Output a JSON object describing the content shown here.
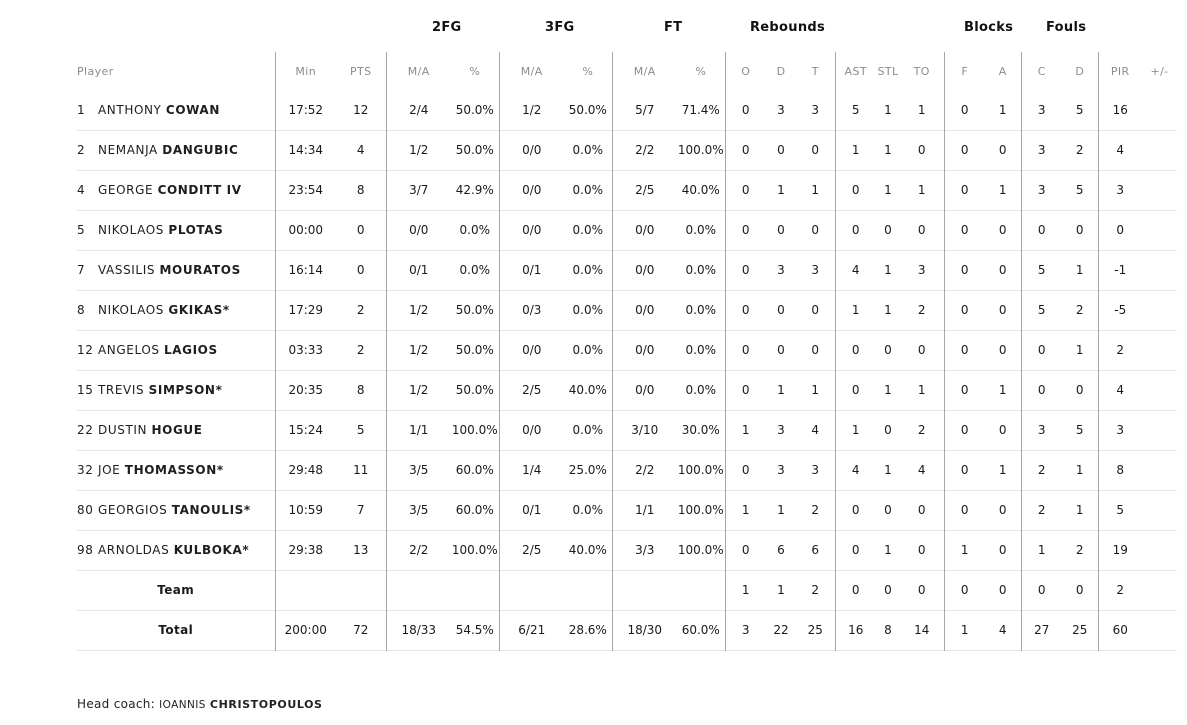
{
  "group_headers": {
    "fg2": "2FG",
    "fg3": "3FG",
    "ft": "FT",
    "rebounds": "Rebounds",
    "blocks": "Blocks",
    "fouls": "Fouls"
  },
  "columns": {
    "player": "Player",
    "min": "Min",
    "pts": "PTS",
    "fg2_ma": "M/A",
    "fg2_pct": "%",
    "fg3_ma": "M/A",
    "fg3_pct": "%",
    "ft_ma": "M/A",
    "ft_pct": "%",
    "reb_o": "O",
    "reb_d": "D",
    "reb_t": "T",
    "ast": "AST",
    "stl": "STL",
    "to": "TO",
    "blk_f": "F",
    "blk_a": "A",
    "foul_c": "C",
    "foul_d": "D",
    "pir": "PIR",
    "pm": "+/-"
  },
  "players": [
    {
      "num": "1",
      "first": "ANTHONY",
      "last": "COWAN",
      "min": "17:52",
      "pts": "12",
      "fg2_ma": "2/4",
      "fg2_pct": "50.0%",
      "fg3_ma": "1/2",
      "fg3_pct": "50.0%",
      "ft_ma": "5/7",
      "ft_pct": "71.4%",
      "reb_o": "0",
      "reb_d": "3",
      "reb_t": "3",
      "ast": "5",
      "stl": "1",
      "to": "1",
      "blk_f": "0",
      "blk_a": "1",
      "foul_c": "3",
      "foul_d": "5",
      "pir": "16",
      "pm": ""
    },
    {
      "num": "2",
      "first": "NEMANJA",
      "last": "DANGUBIC",
      "min": "14:34",
      "pts": "4",
      "fg2_ma": "1/2",
      "fg2_pct": "50.0%",
      "fg3_ma": "0/0",
      "fg3_pct": "0.0%",
      "ft_ma": "2/2",
      "ft_pct": "100.0%",
      "reb_o": "0",
      "reb_d": "0",
      "reb_t": "0",
      "ast": "1",
      "stl": "1",
      "to": "0",
      "blk_f": "0",
      "blk_a": "0",
      "foul_c": "3",
      "foul_d": "2",
      "pir": "4",
      "pm": ""
    },
    {
      "num": "4",
      "first": "GEORGE",
      "last": "CONDITT IV",
      "min": "23:54",
      "pts": "8",
      "fg2_ma": "3/7",
      "fg2_pct": "42.9%",
      "fg3_ma": "0/0",
      "fg3_pct": "0.0%",
      "ft_ma": "2/5",
      "ft_pct": "40.0%",
      "reb_o": "0",
      "reb_d": "1",
      "reb_t": "1",
      "ast": "0",
      "stl": "1",
      "to": "1",
      "blk_f": "0",
      "blk_a": "1",
      "foul_c": "3",
      "foul_d": "5",
      "pir": "3",
      "pm": ""
    },
    {
      "num": "5",
      "first": "NIKOLAOS",
      "last": "PLOTAS",
      "min": "00:00",
      "pts": "0",
      "fg2_ma": "0/0",
      "fg2_pct": "0.0%",
      "fg3_ma": "0/0",
      "fg3_pct": "0.0%",
      "ft_ma": "0/0",
      "ft_pct": "0.0%",
      "reb_o": "0",
      "reb_d": "0",
      "reb_t": "0",
      "ast": "0",
      "stl": "0",
      "to": "0",
      "blk_f": "0",
      "blk_a": "0",
      "foul_c": "0",
      "foul_d": "0",
      "pir": "0",
      "pm": ""
    },
    {
      "num": "7",
      "first": "VASSILIS",
      "last": "MOURATOS",
      "min": "16:14",
      "pts": "0",
      "fg2_ma": "0/1",
      "fg2_pct": "0.0%",
      "fg3_ma": "0/1",
      "fg3_pct": "0.0%",
      "ft_ma": "0/0",
      "ft_pct": "0.0%",
      "reb_o": "0",
      "reb_d": "3",
      "reb_t": "3",
      "ast": "4",
      "stl": "1",
      "to": "3",
      "blk_f": "0",
      "blk_a": "0",
      "foul_c": "5",
      "foul_d": "1",
      "pir": "-1",
      "pm": ""
    },
    {
      "num": "8",
      "first": "NIKOLAOS",
      "last": "GKIKAS*",
      "min": "17:29",
      "pts": "2",
      "fg2_ma": "1/2",
      "fg2_pct": "50.0%",
      "fg3_ma": "0/3",
      "fg3_pct": "0.0%",
      "ft_ma": "0/0",
      "ft_pct": "0.0%",
      "reb_o": "0",
      "reb_d": "0",
      "reb_t": "0",
      "ast": "1",
      "stl": "1",
      "to": "2",
      "blk_f": "0",
      "blk_a": "0",
      "foul_c": "5",
      "foul_d": "2",
      "pir": "-5",
      "pm": ""
    },
    {
      "num": "12",
      "first": "ANGELOS",
      "last": "LAGIOS",
      "min": "03:33",
      "pts": "2",
      "fg2_ma": "1/2",
      "fg2_pct": "50.0%",
      "fg3_ma": "0/0",
      "fg3_pct": "0.0%",
      "ft_ma": "0/0",
      "ft_pct": "0.0%",
      "reb_o": "0",
      "reb_d": "0",
      "reb_t": "0",
      "ast": "0",
      "stl": "0",
      "to": "0",
      "blk_f": "0",
      "blk_a": "0",
      "foul_c": "0",
      "foul_d": "1",
      "pir": "2",
      "pm": ""
    },
    {
      "num": "15",
      "first": "TREVIS",
      "last": "SIMPSON*",
      "min": "20:35",
      "pts": "8",
      "fg2_ma": "1/2",
      "fg2_pct": "50.0%",
      "fg3_ma": "2/5",
      "fg3_pct": "40.0%",
      "ft_ma": "0/0",
      "ft_pct": "0.0%",
      "reb_o": "0",
      "reb_d": "1",
      "reb_t": "1",
      "ast": "0",
      "stl": "1",
      "to": "1",
      "blk_f": "0",
      "blk_a": "1",
      "foul_c": "0",
      "foul_d": "0",
      "pir": "4",
      "pm": ""
    },
    {
      "num": "22",
      "first": "DUSTIN",
      "last": "HOGUE",
      "min": "15:24",
      "pts": "5",
      "fg2_ma": "1/1",
      "fg2_pct": "100.0%",
      "fg3_ma": "0/0",
      "fg3_pct": "0.0%",
      "ft_ma": "3/10",
      "ft_pct": "30.0%",
      "reb_o": "1",
      "reb_d": "3",
      "reb_t": "4",
      "ast": "1",
      "stl": "0",
      "to": "2",
      "blk_f": "0",
      "blk_a": "0",
      "foul_c": "3",
      "foul_d": "5",
      "pir": "3",
      "pm": ""
    },
    {
      "num": "32",
      "first": "JOE",
      "last": "THOMASSON*",
      "min": "29:48",
      "pts": "11",
      "fg2_ma": "3/5",
      "fg2_pct": "60.0%",
      "fg3_ma": "1/4",
      "fg3_pct": "25.0%",
      "ft_ma": "2/2",
      "ft_pct": "100.0%",
      "reb_o": "0",
      "reb_d": "3",
      "reb_t": "3",
      "ast": "4",
      "stl": "1",
      "to": "4",
      "blk_f": "0",
      "blk_a": "1",
      "foul_c": "2",
      "foul_d": "1",
      "pir": "8",
      "pm": ""
    },
    {
      "num": "80",
      "first": "GEORGIOS",
      "last": "TANOULIS*",
      "min": "10:59",
      "pts": "7",
      "fg2_ma": "3/5",
      "fg2_pct": "60.0%",
      "fg3_ma": "0/1",
      "fg3_pct": "0.0%",
      "ft_ma": "1/1",
      "ft_pct": "100.0%",
      "reb_o": "1",
      "reb_d": "1",
      "reb_t": "2",
      "ast": "0",
      "stl": "0",
      "to": "0",
      "blk_f": "0",
      "blk_a": "0",
      "foul_c": "2",
      "foul_d": "1",
      "pir": "5",
      "pm": ""
    },
    {
      "num": "98",
      "first": "ARNOLDAS",
      "last": "KULBOKA*",
      "min": "29:38",
      "pts": "13",
      "fg2_ma": "2/2",
      "fg2_pct": "100.0%",
      "fg3_ma": "2/5",
      "fg3_pct": "40.0%",
      "ft_ma": "3/3",
      "ft_pct": "100.0%",
      "reb_o": "0",
      "reb_d": "6",
      "reb_t": "6",
      "ast": "0",
      "stl": "1",
      "to": "0",
      "blk_f": "1",
      "blk_a": "0",
      "foul_c": "1",
      "foul_d": "2",
      "pir": "19",
      "pm": ""
    }
  ],
  "team": {
    "label": "Team",
    "reb_o": "1",
    "reb_d": "1",
    "reb_t": "2",
    "ast": "0",
    "stl": "0",
    "to": "0",
    "blk_f": "0",
    "blk_a": "0",
    "foul_c": "0",
    "foul_d": "0",
    "pir": "2"
  },
  "total": {
    "label": "Total",
    "min": "200:00",
    "pts": "72",
    "fg2_ma": "18/33",
    "fg2_pct": "54.5%",
    "fg3_ma": "6/21",
    "fg3_pct": "28.6%",
    "ft_ma": "18/30",
    "ft_pct": "60.0%",
    "reb_o": "3",
    "reb_d": "22",
    "reb_t": "25",
    "ast": "16",
    "stl": "8",
    "to": "14",
    "blk_f": "1",
    "blk_a": "4",
    "foul_c": "27",
    "foul_d": "25",
    "pir": "60"
  },
  "coach": {
    "label": "Head coach:",
    "first": "IOANNIS",
    "last": "CHRISTOPOULOS"
  }
}
